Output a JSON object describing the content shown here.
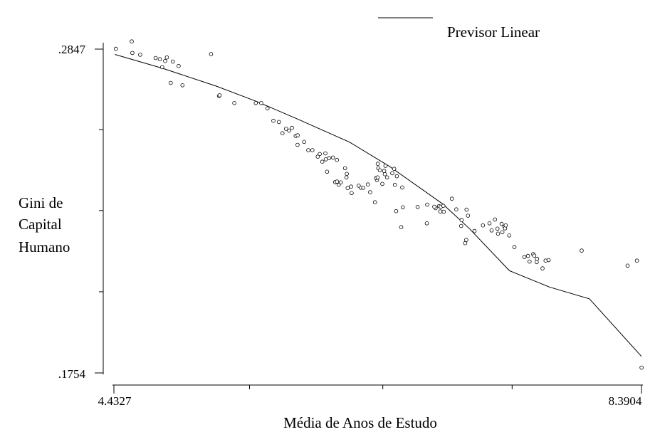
{
  "chart_data": {
    "type": "scatter",
    "title": "",
    "xlabel": "Média de Anos de Estudo",
    "ylabel_lines": [
      "Gini de",
      "Capital",
      "Humano"
    ],
    "xlim": [
      4.4327,
      8.3904
    ],
    "ylim": [
      0.1754,
      0.2847
    ],
    "x_tick_labels": [
      "4.4327",
      "8.3904"
    ],
    "y_tick_labels": [
      ".2847",
      ".1754"
    ],
    "x_minor_ticks": [
      5.45,
      6.45,
      7.42
    ],
    "y_minor_ticks": [
      0.2575,
      0.2302,
      0.2028
    ],
    "legend": {
      "position": "top-right",
      "entries": [
        {
          "label": "Previsor Linear",
          "symbol": "line"
        }
      ]
    },
    "series": [
      {
        "name": "Previsor Linear",
        "kind": "line",
        "x": [
          4.44,
          4.8,
          5.2,
          5.5,
          5.8,
          6.2,
          6.5,
          6.9,
          7.1,
          7.4,
          7.7,
          8.0,
          8.39
        ],
        "y": [
          0.2829,
          0.2782,
          0.2722,
          0.2671,
          0.2613,
          0.2533,
          0.2451,
          0.2324,
          0.2241,
          0.2099,
          0.2044,
          0.2004,
          0.181
        ]
      },
      {
        "name": "points",
        "kind": "scatter",
        "x": [
          4.447,
          4.566,
          4.571,
          4.63,
          4.745,
          4.777,
          4.795,
          4.817,
          4.83,
          4.859,
          4.875,
          4.918,
          4.947,
          5.161,
          5.221,
          5.226,
          5.336,
          5.497,
          5.538,
          5.585,
          5.629,
          5.671,
          5.724,
          5.768,
          5.697,
          5.747,
          5.796,
          5.811,
          5.81,
          5.86,
          5.891,
          5.922,
          5.962,
          5.977,
          5.996,
          6.022,
          6.046,
          6.019,
          6.106,
          6.076,
          6.167,
          6.18,
          6.186,
          6.032,
          6.092,
          6.119,
          6.106,
          6.135,
          6.177,
          6.216,
          6.212,
          6.269,
          6.285,
          6.303,
          6.391,
          6.338,
          6.355,
          6.406,
          6.399,
          6.411,
          6.416,
          6.412,
          6.428,
          6.46,
          6.47,
          6.465,
          6.482,
          6.446,
          6.521,
          6.541,
          6.535,
          6.555,
          6.596,
          6.6,
          6.55,
          6.588,
          6.711,
          6.783,
          6.78,
          6.846,
          6.872,
          6.836,
          6.881,
          6.885,
          6.904,
          6.907,
          6.968,
          7.001,
          7.041,
          7.038,
          7.068,
          7.076,
          7.078,
          7.089,
          7.138,
          7.201,
          7.25,
          7.291,
          7.266,
          7.31,
          7.314,
          7.347,
          7.341,
          7.362,
          7.367,
          7.372,
          7.398,
          7.437,
          7.512,
          7.539,
          7.551,
          7.607,
          7.578,
          7.604,
          7.586,
          7.648,
          7.671,
          7.694,
          7.942,
          8.286,
          8.356,
          8.391
        ],
        "y": [
          0.2848,
          0.2873,
          0.2834,
          0.2828,
          0.2817,
          0.2813,
          0.2786,
          0.2807,
          0.2819,
          0.2733,
          0.2805,
          0.279,
          0.2725,
          0.283,
          0.2689,
          0.2691,
          0.2665,
          0.2665,
          0.2665,
          0.2647,
          0.2605,
          0.2601,
          0.2578,
          0.2581,
          0.2563,
          0.2572,
          0.2554,
          0.2556,
          0.2524,
          0.2534,
          0.2506,
          0.2506,
          0.2484,
          0.2493,
          0.2467,
          0.2475,
          0.2479,
          0.2495,
          0.2473,
          0.2481,
          0.2445,
          0.2426,
          0.2378,
          0.2433,
          0.2398,
          0.2389,
          0.24,
          0.2397,
          0.2414,
          0.2361,
          0.2383,
          0.2386,
          0.2379,
          0.2379,
          0.233,
          0.239,
          0.2364,
          0.2405,
          0.2412,
          0.2414,
          0.2445,
          0.246,
          0.2438,
          0.2436,
          0.2453,
          0.2425,
          0.2414,
          0.2392,
          0.2428,
          0.2389,
          0.2443,
          0.2418,
          0.238,
          0.2313,
          0.23,
          0.2246,
          0.2314,
          0.2322,
          0.2259,
          0.231,
          0.2317,
          0.2315,
          0.2299,
          0.2315,
          0.2318,
          0.2298,
          0.2342,
          0.2306,
          0.227,
          0.225,
          0.2192,
          0.2203,
          0.2305,
          0.2285,
          0.2233,
          0.2252,
          0.2259,
          0.2272,
          0.2235,
          0.2241,
          0.2224,
          0.2229,
          0.2257,
          0.2248,
          0.2242,
          0.2252,
          0.2218,
          0.2179,
          0.2145,
          0.2149,
          0.213,
          0.2139,
          0.2155,
          0.2128,
          0.215,
          0.2107,
          0.2133,
          0.2135,
          0.2167,
          0.2116,
          0.2133,
          0.1772
        ]
      }
    ]
  }
}
